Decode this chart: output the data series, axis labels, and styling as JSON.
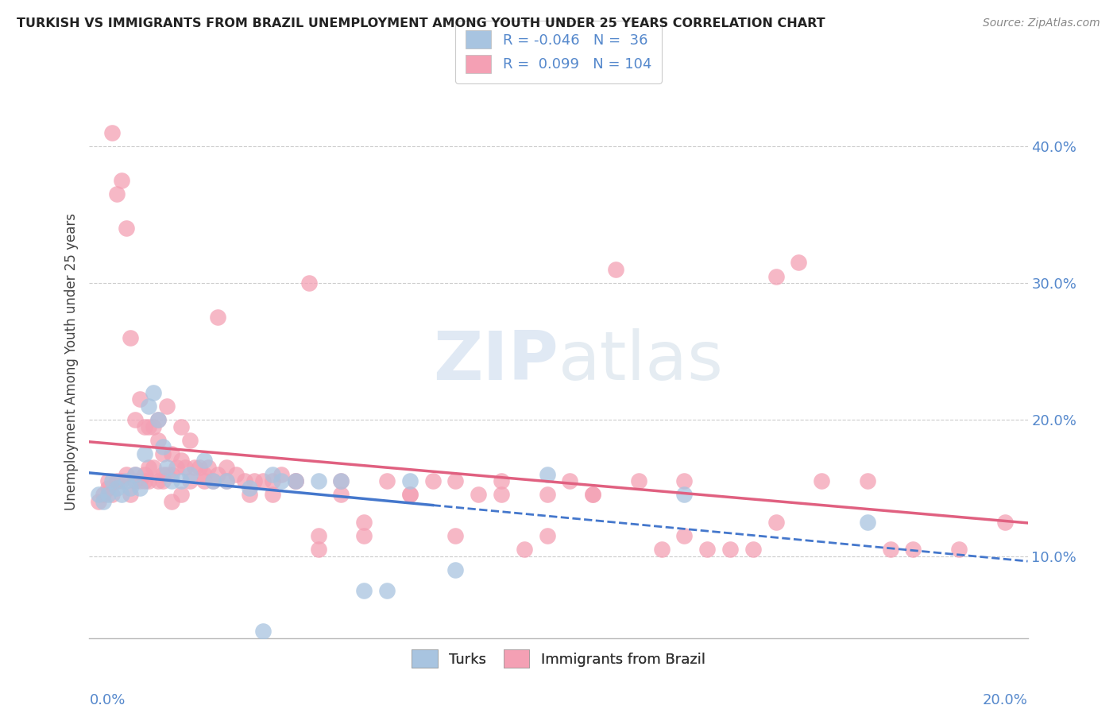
{
  "title": "TURKISH VS IMMIGRANTS FROM BRAZIL UNEMPLOYMENT AMONG YOUTH UNDER 25 YEARS CORRELATION CHART",
  "source": "Source: ZipAtlas.com",
  "ylabel": "Unemployment Among Youth under 25 years",
  "y_ticks": [
    0.1,
    0.2,
    0.3,
    0.4
  ],
  "y_tick_labels": [
    "10.0%",
    "20.0%",
    "30.0%",
    "40.0%"
  ],
  "xlim": [
    0.0,
    0.205
  ],
  "ylim": [
    0.04,
    0.445
  ],
  "legend_turks_r": "-0.046",
  "legend_turks_n": "36",
  "legend_brazil_r": "0.099",
  "legend_brazil_n": "104",
  "turks_color": "#a8c4e0",
  "brazil_color": "#f4a0b4",
  "turks_line_color": "#4477cc",
  "brazil_line_color": "#e06080",
  "background_color": "#ffffff",
  "turks_x": [
    0.002,
    0.003,
    0.004,
    0.005,
    0.006,
    0.007,
    0.008,
    0.009,
    0.01,
    0.011,
    0.012,
    0.013,
    0.014,
    0.015,
    0.016,
    0.017,
    0.018,
    0.02,
    0.022,
    0.025,
    0.027,
    0.03,
    0.035,
    0.038,
    0.04,
    0.042,
    0.045,
    0.05,
    0.055,
    0.06,
    0.065,
    0.07,
    0.08,
    0.1,
    0.13,
    0.17
  ],
  "turks_y": [
    0.145,
    0.14,
    0.145,
    0.155,
    0.15,
    0.145,
    0.155,
    0.15,
    0.16,
    0.15,
    0.175,
    0.21,
    0.22,
    0.2,
    0.18,
    0.165,
    0.155,
    0.155,
    0.16,
    0.17,
    0.155,
    0.155,
    0.15,
    0.045,
    0.16,
    0.155,
    0.155,
    0.155,
    0.155,
    0.075,
    0.075,
    0.155,
    0.09,
    0.16,
    0.145,
    0.125
  ],
  "brazil_x": [
    0.002,
    0.003,
    0.004,
    0.005,
    0.006,
    0.007,
    0.008,
    0.009,
    0.01,
    0.01,
    0.011,
    0.011,
    0.012,
    0.012,
    0.013,
    0.013,
    0.014,
    0.014,
    0.015,
    0.015,
    0.016,
    0.016,
    0.017,
    0.017,
    0.018,
    0.018,
    0.019,
    0.02,
    0.02,
    0.021,
    0.022,
    0.023,
    0.024,
    0.025,
    0.026,
    0.027,
    0.028,
    0.03,
    0.032,
    0.034,
    0.036,
    0.038,
    0.04,
    0.042,
    0.045,
    0.048,
    0.05,
    0.055,
    0.06,
    0.065,
    0.07,
    0.075,
    0.08,
    0.085,
    0.09,
    0.095,
    0.1,
    0.105,
    0.11,
    0.115,
    0.12,
    0.125,
    0.13,
    0.135,
    0.14,
    0.145,
    0.15,
    0.155,
    0.16,
    0.17,
    0.175,
    0.18,
    0.19,
    0.2,
    0.004,
    0.005,
    0.006,
    0.007,
    0.008,
    0.009,
    0.01,
    0.012,
    0.013,
    0.015,
    0.016,
    0.018,
    0.02,
    0.022,
    0.025,
    0.028,
    0.03,
    0.035,
    0.04,
    0.045,
    0.05,
    0.055,
    0.06,
    0.07,
    0.08,
    0.09,
    0.1,
    0.11,
    0.13,
    0.15
  ],
  "brazil_y": [
    0.14,
    0.145,
    0.15,
    0.41,
    0.365,
    0.375,
    0.34,
    0.26,
    0.2,
    0.16,
    0.155,
    0.215,
    0.195,
    0.16,
    0.165,
    0.195,
    0.165,
    0.195,
    0.185,
    0.2,
    0.16,
    0.175,
    0.16,
    0.21,
    0.175,
    0.16,
    0.165,
    0.17,
    0.195,
    0.165,
    0.185,
    0.165,
    0.165,
    0.16,
    0.165,
    0.155,
    0.275,
    0.165,
    0.16,
    0.155,
    0.155,
    0.155,
    0.145,
    0.16,
    0.155,
    0.3,
    0.105,
    0.155,
    0.125,
    0.155,
    0.145,
    0.155,
    0.155,
    0.145,
    0.155,
    0.105,
    0.145,
    0.155,
    0.145,
    0.31,
    0.155,
    0.105,
    0.155,
    0.105,
    0.105,
    0.105,
    0.305,
    0.315,
    0.155,
    0.155,
    0.105,
    0.105,
    0.105,
    0.125,
    0.155,
    0.145,
    0.155,
    0.155,
    0.16,
    0.145,
    0.155,
    0.155,
    0.155,
    0.155,
    0.155,
    0.14,
    0.145,
    0.155,
    0.155,
    0.16,
    0.155,
    0.145,
    0.155,
    0.155,
    0.115,
    0.145,
    0.115,
    0.145,
    0.115,
    0.145,
    0.115,
    0.145,
    0.115,
    0.125
  ]
}
